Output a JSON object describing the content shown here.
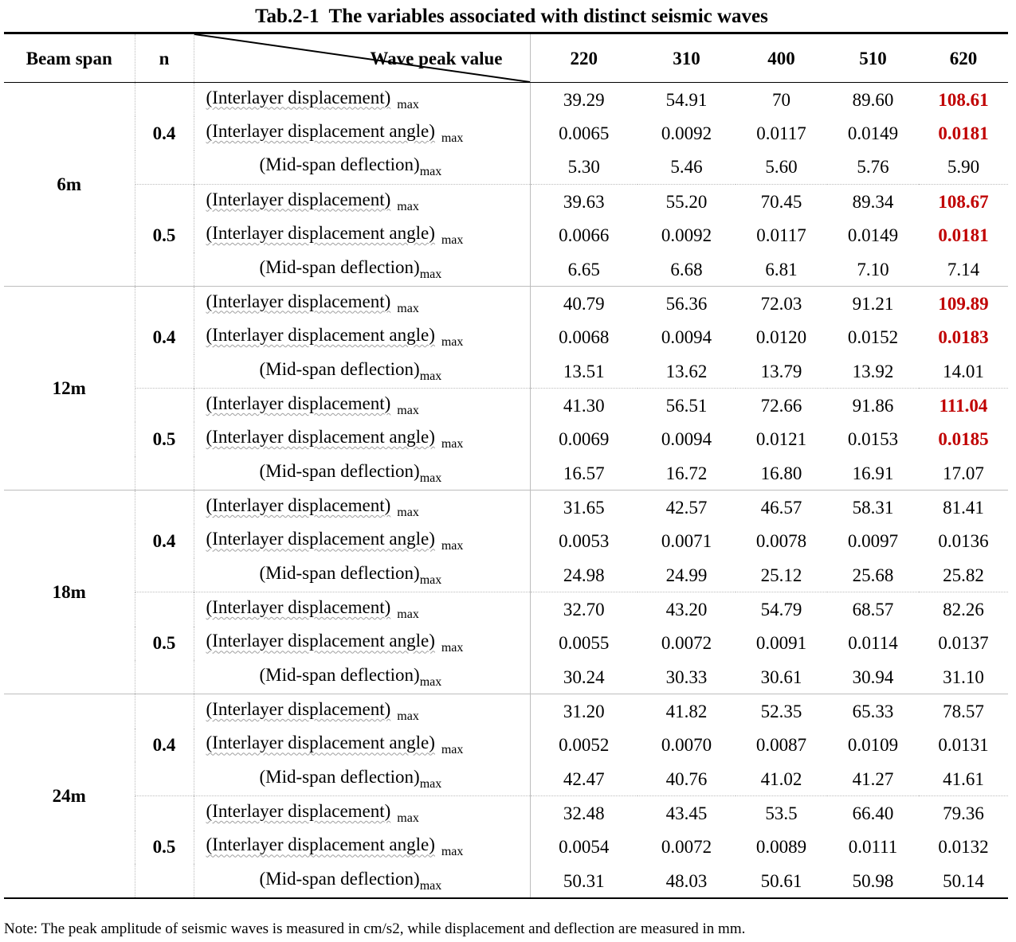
{
  "title": "Tab.2-1  The variables associated with distinct seismic waves",
  "header": {
    "beam_span": "Beam span",
    "n": "n",
    "wave_peak_value": "Wave peak value",
    "peaks": [
      "220",
      "310",
      "400",
      "510",
      "620"
    ]
  },
  "labels": {
    "disp": "(Interlayer displacement)",
    "angle": "(Interlayer displacement angle)",
    "defl": "(Mid-span deflection)",
    "sub": "max"
  },
  "spans": [
    {
      "span": "6m",
      "groups": [
        {
          "n": "0.4",
          "rows": [
            {
              "values": [
                "39.29",
                "54.91",
                "70",
                "89.60",
                "108.61"
              ],
              "highlight_last": true
            },
            {
              "values": [
                "0.0065",
                "0.0092",
                "0.0117",
                "0.0149",
                "0.0181"
              ],
              "highlight_last": true
            },
            {
              "values": [
                "5.30",
                "5.46",
                "5.60",
                "5.76",
                "5.90"
              ],
              "highlight_last": false
            }
          ]
        },
        {
          "n": "0.5",
          "rows": [
            {
              "values": [
                "39.63",
                "55.20",
                "70.45",
                "89.34",
                "108.67"
              ],
              "highlight_last": true
            },
            {
              "values": [
                "0.0066",
                "0.0092",
                "0.0117",
                "0.0149",
                "0.0181"
              ],
              "highlight_last": true
            },
            {
              "values": [
                "6.65",
                "6.68",
                "6.81",
                "7.10",
                "7.14"
              ],
              "highlight_last": false
            }
          ]
        }
      ]
    },
    {
      "span": "12m",
      "groups": [
        {
          "n": "0.4",
          "rows": [
            {
              "values": [
                "40.79",
                "56.36",
                "72.03",
                "91.21",
                "109.89"
              ],
              "highlight_last": true
            },
            {
              "values": [
                "0.0068",
                "0.0094",
                "0.0120",
                "0.0152",
                "0.0183"
              ],
              "highlight_last": true
            },
            {
              "values": [
                "13.51",
                "13.62",
                "13.79",
                "13.92",
                "14.01"
              ],
              "highlight_last": false
            }
          ]
        },
        {
          "n": "0.5",
          "rows": [
            {
              "values": [
                "41.30",
                "56.51",
                "72.66",
                "91.86",
                "111.04"
              ],
              "highlight_last": true
            },
            {
              "values": [
                "0.0069",
                "0.0094",
                "0.0121",
                "0.0153",
                "0.0185"
              ],
              "highlight_last": true
            },
            {
              "values": [
                "16.57",
                "16.72",
                "16.80",
                "16.91",
                "17.07"
              ],
              "highlight_last": false
            }
          ]
        }
      ]
    },
    {
      "span": "18m",
      "groups": [
        {
          "n": "0.4",
          "rows": [
            {
              "values": [
                "31.65",
                "42.57",
                "46.57",
                "58.31",
                "81.41"
              ],
              "highlight_last": false
            },
            {
              "values": [
                "0.0053",
                "0.0071",
                "0.0078",
                "0.0097",
                "0.0136"
              ],
              "highlight_last": false
            },
            {
              "values": [
                "24.98",
                "24.99",
                "25.12",
                "25.68",
                "25.82"
              ],
              "highlight_last": false
            }
          ]
        },
        {
          "n": "0.5",
          "rows": [
            {
              "values": [
                "32.70",
                "43.20",
                "54.79",
                "68.57",
                "82.26"
              ],
              "highlight_last": false
            },
            {
              "values": [
                "0.0055",
                "0.0072",
                "0.0091",
                "0.0114",
                "0.0137"
              ],
              "highlight_last": false
            },
            {
              "values": [
                "30.24",
                "30.33",
                "30.61",
                "30.94",
                "31.10"
              ],
              "highlight_last": false
            }
          ]
        }
      ]
    },
    {
      "span": "24m",
      "groups": [
        {
          "n": "0.4",
          "rows": [
            {
              "values": [
                "31.20",
                "41.82",
                "52.35",
                "65.33",
                "78.57"
              ],
              "highlight_last": false
            },
            {
              "values": [
                "0.0052",
                "0.0070",
                "0.0087",
                "0.0109",
                "0.0131"
              ],
              "highlight_last": false
            },
            {
              "values": [
                "42.47",
                "40.76",
                "41.02",
                "41.27",
                "41.61"
              ],
              "highlight_last": false
            }
          ]
        },
        {
          "n": "0.5",
          "rows": [
            {
              "values": [
                "32.48",
                "43.45",
                "53.5",
                "66.40",
                "79.36"
              ],
              "highlight_last": false
            },
            {
              "values": [
                "0.0054",
                "0.0072",
                "0.0089",
                "0.0111",
                "0.0132"
              ],
              "highlight_last": false
            },
            {
              "values": [
                "50.31",
                "48.03",
                "50.61",
                "50.98",
                "50.14"
              ],
              "highlight_last": false
            }
          ]
        }
      ]
    }
  ],
  "colors": {
    "highlight": "#c00000"
  },
  "note": "Note: The peak amplitude of seismic waves is measured in cm/s2, while displacement and deflection are measured in mm."
}
